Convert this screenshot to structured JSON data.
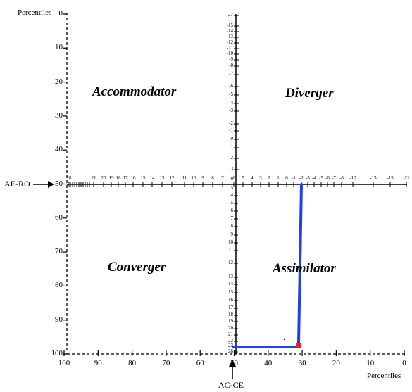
{
  "percentiles_top_label": "Percentiles",
  "percentiles_bottom_label": "Percentiles",
  "left_axis_ticks": [
    "0",
    "10",
    "20",
    "30",
    "40",
    "50",
    "60",
    "70",
    "80",
    "90",
    "100"
  ],
  "bottom_axis_ticks": [
    "100",
    "90",
    "80",
    "70",
    "60",
    "50",
    "40",
    "30",
    "20",
    "10",
    "0"
  ],
  "ae_ro_label": "AE-RO",
  "ac_ce_label": "AC-CE",
  "quadrants": {
    "accommodator": "Accommodator",
    "diverger": "Diverger",
    "converger": "Converger",
    "assimilator": "Assimilator"
  },
  "center_upper_scale": [
    "-27",
    "-15",
    "-14",
    "-13",
    "-12",
    "-11",
    "-10",
    "-9",
    "-8",
    "-7",
    "-6",
    "-5",
    "-4",
    "-3",
    "-2",
    "-1",
    "0",
    "1",
    "2",
    "3"
  ],
  "center_lower_scale": [
    "6",
    "5",
    "4",
    "5",
    "6",
    "7",
    "8",
    "9",
    "10",
    "11",
    "12",
    "13",
    "14",
    "15",
    "16",
    "17",
    "18",
    "19",
    "20",
    "21",
    "22",
    "23",
    "28"
  ],
  "horizontal_scale": [
    "28",
    "21",
    "20",
    "19",
    "18",
    "17",
    "16",
    "15",
    "14",
    "13",
    "12",
    "11",
    "10",
    "9",
    "8",
    "7",
    "6",
    "5",
    "4",
    "3",
    "2",
    "1",
    "0",
    "-1",
    "-2",
    "-3",
    "-4",
    "-5",
    "-6",
    "-7",
    "-8",
    "-10",
    "-13",
    "-15",
    "-21"
  ],
  "profile": {
    "line_color": "#1e3ff2",
    "point_color": "#ee2222"
  }
}
